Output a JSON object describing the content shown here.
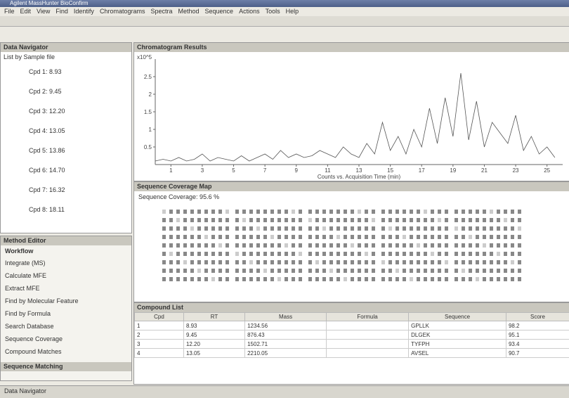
{
  "window": {
    "title": "Agilent MassHunter BioConfirm",
    "menu": [
      "File",
      "Edit",
      "View",
      "Find",
      "Identify",
      "Chromatograms",
      "Spectra",
      "Method",
      "Sequence",
      "Actions",
      "Tools",
      "Help"
    ]
  },
  "navigator": {
    "title": "Data Navigator",
    "filter": "List by Sample file",
    "items": [
      "Cpd 1: 8.93",
      "Cpd 2: 9.45",
      "Cpd 3: 12.20",
      "Cpd 4: 13.05",
      "Cpd 5: 13.86",
      "Cpd 6: 14.70",
      "Cpd 7: 16.32",
      "Cpd 8: 18.11"
    ]
  },
  "workflow": {
    "title": "Method Editor",
    "subtitle": "Workflow",
    "items": [
      "Integrate (MS)",
      "Calculate MFE",
      "Extract MFE",
      "Find by Molecular Feature",
      "Find by Formula",
      "Search Database",
      "Sequence Coverage",
      "Compound Matches"
    ],
    "footer": "Sequence Matching",
    "tab": "Data Navigator"
  },
  "chromatogram": {
    "title": "Chromatogram Results",
    "type": "line",
    "ylabel": "x10^5",
    "xlabel": "Counts vs. Acquisition Time (min)",
    "x": [
      0,
      0.5,
      1,
      1.5,
      2,
      2.5,
      3,
      3.5,
      4,
      4.5,
      5,
      5.5,
      6,
      6.5,
      7,
      7.5,
      8,
      8.5,
      9,
      9.5,
      10,
      10.5,
      11,
      11.5,
      12,
      12.5,
      13,
      13.5,
      14,
      14.5,
      15,
      15.5,
      16,
      16.5,
      17,
      17.5,
      18,
      18.5,
      19,
      19.5,
      20,
      20.5,
      21,
      21.5,
      22,
      22.5,
      23,
      23.5,
      24,
      24.5,
      25,
      25.5
    ],
    "values": [
      0.1,
      0.15,
      0.1,
      0.2,
      0.1,
      0.15,
      0.3,
      0.1,
      0.2,
      0.15,
      0.1,
      0.25,
      0.1,
      0.2,
      0.3,
      0.15,
      0.4,
      0.2,
      0.3,
      0.2,
      0.25,
      0.4,
      0.3,
      0.2,
      0.5,
      0.3,
      0.2,
      0.6,
      0.3,
      1.2,
      0.4,
      0.8,
      0.3,
      1.0,
      0.5,
      1.6,
      0.6,
      1.9,
      0.8,
      2.6,
      0.7,
      1.8,
      0.5,
      1.2,
      0.9,
      0.6,
      1.4,
      0.4,
      0.8,
      0.3,
      0.5,
      0.2
    ],
    "color": "#555555",
    "xlim": [
      0,
      26
    ],
    "xticks": [
      1,
      3,
      5,
      7,
      9,
      11,
      13,
      15,
      17,
      19,
      21,
      23,
      25
    ],
    "ylim": [
      0,
      3
    ],
    "yticks": [
      0.5,
      1,
      1.5,
      2,
      2.5
    ]
  },
  "coverage": {
    "title": "Sequence Coverage Map",
    "label": "Sequence Coverage: 95.6 %"
  },
  "compounds": {
    "title": "Compound List",
    "headers": [
      "Cpd",
      "RT",
      "Mass",
      "Formula",
      "Sequence",
      "Score"
    ],
    "rows": [
      [
        "1",
        "8.93",
        "1234.56",
        "",
        "GPLLK",
        "98.2"
      ],
      [
        "2",
        "9.45",
        "876.43",
        "",
        "DLGEK",
        "95.1"
      ],
      [
        "3",
        "12.20",
        "1502.71",
        "",
        "TYFPH",
        "93.4"
      ],
      [
        "4",
        "13.05",
        "2210.05",
        "",
        "AVSEL",
        "90.7"
      ]
    ]
  }
}
